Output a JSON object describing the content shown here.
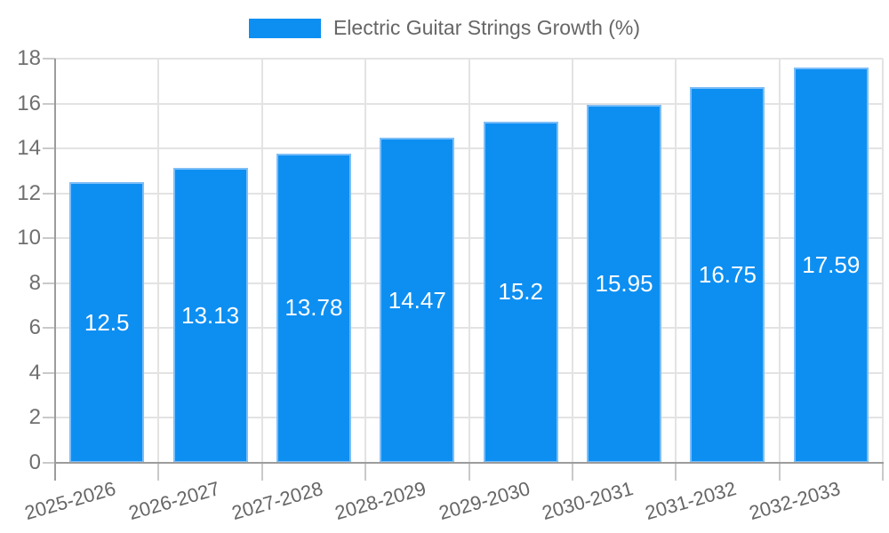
{
  "legend": {
    "label": "Electric Guitar Strings Growth (%)"
  },
  "chart_data": {
    "type": "bar",
    "title": "Electric Guitar Strings Growth (%)",
    "categories": [
      "2025-2026",
      "2026-2027",
      "2027-2028",
      "2028-2029",
      "2029-2030",
      "2030-2031",
      "2031-2032",
      "2032-2033"
    ],
    "values": [
      12.5,
      13.13,
      13.78,
      14.47,
      15.2,
      15.95,
      16.75,
      17.59
    ],
    "value_labels": [
      "12.5",
      "13.13",
      "13.78",
      "14.47",
      "15.2",
      "15.95",
      "16.75",
      "17.59"
    ],
    "xlabel": "",
    "ylabel": "",
    "ylim": [
      0,
      18
    ],
    "y_ticks": [
      0,
      2,
      4,
      6,
      8,
      10,
      12,
      14,
      16,
      18
    ],
    "grid": true,
    "legend_position": "top",
    "colors": {
      "bar_fill": "#0d8ff2",
      "bar_border": "#7dbef8",
      "gridline": "#e3e3e3",
      "axis_line": "#9c9c9c",
      "tick_mark": "#c9c9c9",
      "axis_text": "#6f6f6f",
      "legend_text": "#666666",
      "value_text": "#ffffff"
    }
  }
}
